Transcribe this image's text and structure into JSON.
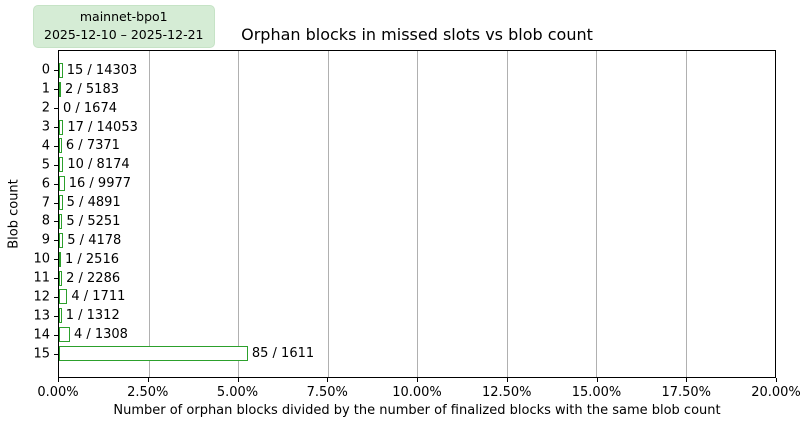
{
  "legend": {
    "lines": [
      "mainnet-bpo1",
      "2025-12-10 – 2025-12-21"
    ],
    "background": "#d5ecd5"
  },
  "chart_data": {
    "type": "bar",
    "orientation": "horizontal",
    "title": "Orphan blocks in missed slots vs blob count",
    "xlabel": "Number of orphan blocks divided by the number of finalized blocks with the same blob count",
    "ylabel": "Blob count",
    "xlim": [
      0,
      20
    ],
    "x_tick_labels": [
      "0.00%",
      "2.50%",
      "5.00%",
      "7.50%",
      "10.00%",
      "12.50%",
      "15.00%",
      "17.50%",
      "20.00%"
    ],
    "grid": true,
    "grid_color": "#b0b0b0",
    "bar_edge_color": "#2ca02c",
    "bar_fill_color": "#ffffff",
    "legend_position": "outside-upper-left",
    "bars": [
      {
        "blob_count": "0",
        "orphans": 15,
        "finalized": 14303,
        "pct": 0.105,
        "label": "15 / 14303"
      },
      {
        "blob_count": "1",
        "orphans": 2,
        "finalized": 5183,
        "pct": 0.039,
        "label": "2 / 5183"
      },
      {
        "blob_count": "2",
        "orphans": 0,
        "finalized": 1674,
        "pct": 0.0,
        "label": "0 / 1674"
      },
      {
        "blob_count": "3",
        "orphans": 17,
        "finalized": 14053,
        "pct": 0.121,
        "label": "17 / 14053"
      },
      {
        "blob_count": "4",
        "orphans": 6,
        "finalized": 7371,
        "pct": 0.081,
        "label": "6 / 7371"
      },
      {
        "blob_count": "5",
        "orphans": 10,
        "finalized": 8174,
        "pct": 0.122,
        "label": "10 / 8174"
      },
      {
        "blob_count": "6",
        "orphans": 16,
        "finalized": 9977,
        "pct": 0.16,
        "label": "16 / 9977"
      },
      {
        "blob_count": "7",
        "orphans": 5,
        "finalized": 4891,
        "pct": 0.102,
        "label": "5 / 4891"
      },
      {
        "blob_count": "8",
        "orphans": 5,
        "finalized": 5251,
        "pct": 0.095,
        "label": "5 / 5251"
      },
      {
        "blob_count": "9",
        "orphans": 5,
        "finalized": 4178,
        "pct": 0.12,
        "label": "5 / 4178"
      },
      {
        "blob_count": "10",
        "orphans": 1,
        "finalized": 2516,
        "pct": 0.04,
        "label": "1 / 2516"
      },
      {
        "blob_count": "11",
        "orphans": 2,
        "finalized": 2286,
        "pct": 0.087,
        "label": "2 / 2286"
      },
      {
        "blob_count": "12",
        "orphans": 4,
        "finalized": 1711,
        "pct": 0.234,
        "label": "4 / 1711"
      },
      {
        "blob_count": "13",
        "orphans": 1,
        "finalized": 1312,
        "pct": 0.076,
        "label": "1 / 1312"
      },
      {
        "blob_count": "14",
        "orphans": 4,
        "finalized": 1308,
        "pct": 0.306,
        "label": "4 / 1308"
      },
      {
        "blob_count": "15",
        "orphans": 85,
        "finalized": 1611,
        "pct": 5.276,
        "label": "85 / 1611"
      }
    ]
  }
}
